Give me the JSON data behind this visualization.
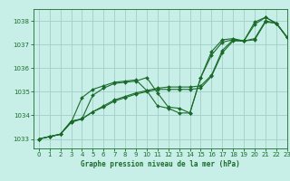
{
  "background_color": "#c8eee8",
  "grid_color": "#a0d0c8",
  "line_color": "#1a6b2a",
  "title": "Graphe pression niveau de la mer (hPa)",
  "xlim": [
    -0.5,
    23
  ],
  "ylim": [
    1032.6,
    1038.5
  ],
  "yticks": [
    1033,
    1034,
    1035,
    1036,
    1037,
    1038
  ],
  "xticks": [
    0,
    1,
    2,
    3,
    4,
    5,
    6,
    7,
    8,
    9,
    10,
    11,
    12,
    13,
    14,
    15,
    16,
    17,
    18,
    19,
    20,
    21,
    22,
    23
  ],
  "series": [
    [
      1033.0,
      1033.1,
      1033.2,
      1033.7,
      1033.85,
      1034.85,
      1035.15,
      1035.35,
      1035.4,
      1035.45,
      1035.6,
      1034.95,
      1034.35,
      1034.3,
      1034.1,
      1035.6,
      1036.55,
      1037.1,
      1037.2,
      1037.15,
      1037.85,
      1038.15,
      1037.9,
      1037.3
    ],
    [
      1033.0,
      1033.1,
      1033.2,
      1033.7,
      1034.75,
      1035.1,
      1035.25,
      1035.4,
      1035.45,
      1035.5,
      1035.05,
      1034.4,
      1034.3,
      1034.1,
      1034.1,
      1035.6,
      1036.7,
      1037.2,
      1037.25,
      1037.15,
      1037.95,
      1038.15,
      1037.9,
      1037.3
    ],
    [
      1033.0,
      1033.1,
      1033.2,
      1033.75,
      1033.85,
      1034.15,
      1034.35,
      1034.6,
      1034.75,
      1034.9,
      1035.0,
      1035.1,
      1035.1,
      1035.1,
      1035.1,
      1035.15,
      1035.65,
      1036.65,
      1037.15,
      1037.15,
      1037.2,
      1037.95,
      1037.9,
      1037.3
    ],
    [
      1033.0,
      1033.1,
      1033.2,
      1033.75,
      1033.85,
      1034.15,
      1034.4,
      1034.65,
      1034.8,
      1034.95,
      1035.05,
      1035.15,
      1035.2,
      1035.2,
      1035.2,
      1035.25,
      1035.7,
      1036.75,
      1037.2,
      1037.15,
      1037.25,
      1038.0,
      1037.9,
      1037.3
    ]
  ]
}
